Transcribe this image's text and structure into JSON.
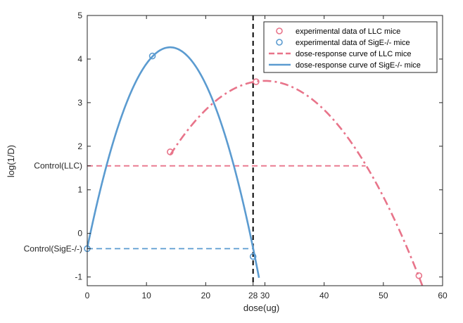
{
  "chart_data": {
    "type": "line",
    "xlabel": "dose(ug)",
    "ylabel": "log(1/D)",
    "xlim": [
      0,
      60
    ],
    "ylim": [
      -1.2,
      5
    ],
    "xticks": [
      0,
      10,
      20,
      28,
      30,
      40,
      50,
      60
    ],
    "xtick_labels": [
      "0",
      "10",
      "20",
      "28",
      "30",
      "40",
      "50",
      "60"
    ],
    "yticks": [
      -1,
      0,
      1,
      2,
      3,
      4,
      5
    ],
    "ytick_labels": [
      "-1",
      "0",
      "1",
      "2",
      "3",
      "4",
      "5"
    ],
    "extra_yticks": [
      {
        "value": 1.55,
        "label": "Control(LLC)"
      },
      {
        "value": -0.35,
        "label": "Control(SigE-/-)"
      }
    ],
    "grid": false,
    "legend_position": "top-right",
    "colors": {
      "llc": "#e8748a",
      "sige": "#5b9bd0",
      "vline": "#000000",
      "axis": "#262626"
    },
    "series": [
      {
        "name": "experimental data of LLC mice",
        "kind": "markers",
        "color_key": "llc",
        "points": [
          [
            14,
            1.87
          ],
          [
            28.5,
            3.48
          ],
          [
            56,
            -0.97
          ]
        ]
      },
      {
        "name": "experimental data of SigE-/- mice",
        "kind": "markers",
        "color_key": "sige",
        "points": [
          [
            0,
            -0.35
          ],
          [
            11,
            4.07
          ],
          [
            28,
            -0.53
          ]
        ]
      },
      {
        "name": "dose-response curve of LLC mice",
        "kind": "curve",
        "style": "dashdot",
        "color_key": "llc",
        "quadratic": {
          "vertex_x": 30,
          "vertex_y": 3.5,
          "a": -0.00665
        },
        "x_range": [
          14,
          57
        ]
      },
      {
        "name": "dose-response curve of SigE-/- mice",
        "kind": "curve",
        "style": "solid",
        "color_key": "sige",
        "quadratic": {
          "vertex_x": 14,
          "vertex_y": 4.27,
          "a": -0.0235
        },
        "x_range": [
          0,
          29
        ]
      }
    ],
    "reference_lines": [
      {
        "orientation": "horizontal",
        "y": 1.55,
        "x_range": [
          0,
          47
        ],
        "color_key": "llc",
        "style": "dashed"
      },
      {
        "orientation": "horizontal",
        "y": -0.35,
        "x_range": [
          0,
          28
        ],
        "color_key": "sige",
        "style": "dashed"
      },
      {
        "orientation": "vertical",
        "x": 28,
        "color_key": "vline",
        "style": "dashed"
      }
    ]
  }
}
